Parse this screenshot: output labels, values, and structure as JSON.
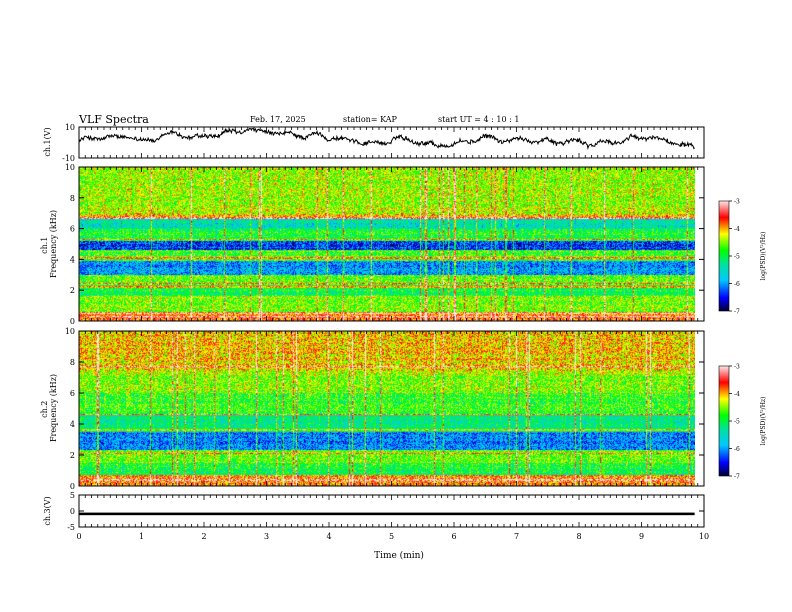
{
  "header": {
    "title": "VLF Spectra",
    "date": "Feb. 17, 2025",
    "station": "station= KAP",
    "start_ut": "start  UT  =   4 : 10 : 1"
  },
  "chart_data": [
    {
      "type": "line",
      "name": "ch1-voltage",
      "ylabel": "ch.1(V)",
      "ylim": [
        -10,
        10
      ],
      "ytick_labels": [
        "10",
        "-10"
      ],
      "xlim": [
        0,
        10
      ],
      "data_extent_min": 9.85,
      "approx_mean_v": 1.5,
      "approx_amplitude_v": 5
    },
    {
      "type": "heatmap",
      "name": "ch1-spectrogram",
      "ylabel": "ch.1\nFrequency  (kHz)",
      "ylim": [
        0,
        10
      ],
      "ytick_labels": [
        "0",
        "2",
        "4",
        "6",
        "8",
        "10"
      ],
      "xlim": [
        0,
        10
      ],
      "data_extent_min": 9.85,
      "band_profile": [
        {
          "f0": 0.0,
          "f1": 0.6,
          "level": -3.8
        },
        {
          "f0": 0.6,
          "f1": 1.6,
          "level": -4.5
        },
        {
          "f0": 1.6,
          "f1": 2.4,
          "level": -5.0
        },
        {
          "f0": 2.4,
          "f1": 3.0,
          "level": -4.6
        },
        {
          "f0": 3.0,
          "f1": 3.9,
          "level": -6.0
        },
        {
          "f0": 3.9,
          "f1": 4.6,
          "level": -4.7
        },
        {
          "f0": 4.6,
          "f1": 5.2,
          "level": -6.3
        },
        {
          "f0": 5.2,
          "f1": 6.0,
          "level": -4.9
        },
        {
          "f0": 6.0,
          "f1": 6.6,
          "level": -5.4
        },
        {
          "f0": 6.6,
          "f1": 7.0,
          "level": -4.1
        },
        {
          "f0": 7.0,
          "f1": 10.0,
          "level": -4.4
        }
      ],
      "line_freqs_khz": [
        0.3,
        0.5,
        2.2,
        2.4,
        4.1,
        5.3,
        6.7
      ]
    },
    {
      "type": "heatmap",
      "name": "ch2-spectrogram",
      "ylabel": "ch.2\nFrequency  (kHz)",
      "ylim": [
        0,
        10
      ],
      "ytick_labels": [
        "0",
        "2",
        "4",
        "6",
        "8",
        "10"
      ],
      "xlim": [
        0,
        10
      ],
      "data_extent_min": 9.85,
      "band_profile": [
        {
          "f0": 0.0,
          "f1": 0.7,
          "level": -3.9
        },
        {
          "f0": 0.7,
          "f1": 1.5,
          "level": -5.0
        },
        {
          "f0": 1.5,
          "f1": 2.3,
          "level": -4.6
        },
        {
          "f0": 2.3,
          "f1": 3.5,
          "level": -6.1
        },
        {
          "f0": 3.5,
          "f1": 4.6,
          "level": -5.3
        },
        {
          "f0": 4.6,
          "f1": 6.0,
          "level": -4.8
        },
        {
          "f0": 6.0,
          "f1": 7.4,
          "level": -4.5
        },
        {
          "f0": 7.4,
          "f1": 10.0,
          "level": -4.1
        }
      ],
      "line_freqs_khz": [
        0.4,
        2.1,
        3.6,
        4.6,
        7.7
      ]
    },
    {
      "type": "line",
      "name": "ch3-voltage",
      "ylabel": "ch.3(V)",
      "ylim": [
        -5,
        5
      ],
      "ytick_labels": [
        "5",
        "0",
        "-5"
      ],
      "xlim": [
        0,
        10
      ],
      "data_extent_min": 9.85,
      "level_v": -0.9,
      "band_half_width_v": 0.4,
      "xlabel": "Time  (min)",
      "xtick_labels": [
        "0",
        "1",
        "2",
        "3",
        "4",
        "5",
        "6",
        "7",
        "8",
        "9",
        "10"
      ]
    }
  ],
  "colorbar": {
    "label": "log(PSD)(V²/Hz)",
    "range": [
      -7,
      -3
    ],
    "tick_labels": [
      "-3",
      "-4",
      "-5",
      "-6",
      "-7"
    ]
  },
  "colors": {
    "axis": "#000000",
    "background": "#ffffff",
    "trace": "#000000"
  }
}
